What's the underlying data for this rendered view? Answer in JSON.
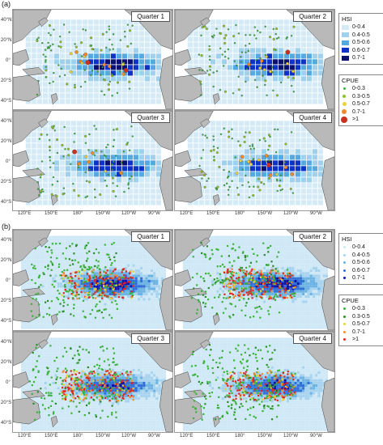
{
  "panels": [
    {
      "letter": "(a)",
      "quarters": [
        "Quarter 1",
        "Quarter 2",
        "Quarter 3",
        "Quarter 4"
      ]
    },
    {
      "letter": "(b)",
      "quarters": [
        "Quarter 1",
        "Quarter 2",
        "Quarter 3",
        "Quarter 4"
      ]
    }
  ],
  "axes": {
    "lat_labels_top": [
      "40°N",
      "20°N",
      "0°",
      "20°S",
      "40°S"
    ],
    "lat_labels_bottom": [
      "40°N",
      "20°N",
      "0°",
      "20°S",
      "40°S"
    ],
    "lon_labels": [
      "120°E",
      "150°E",
      "180°",
      "150°W",
      "120°W",
      "90°W"
    ]
  },
  "legend_a": {
    "hsi_title": "HSI",
    "hsi_items": [
      {
        "label": "0-0.4",
        "color": "#d4ebf7"
      },
      {
        "label": "0.4-0.5",
        "color": "#9fd0ec"
      },
      {
        "label": "0.5-0.6",
        "color": "#55a9e0"
      },
      {
        "label": "0.6-0.7",
        "color": "#0c32c6"
      },
      {
        "label": "0.7-1",
        "color": "#0a1070"
      }
    ],
    "cpue_title": "CPUE",
    "cpue_items": [
      {
        "label": "0-0.3",
        "color": "#3bb33b",
        "size": 3
      },
      {
        "label": "0.3-0.5",
        "color": "#8fbf2b",
        "size": 4
      },
      {
        "label": "0.5-0.7",
        "color": "#e8d23a",
        "size": 5
      },
      {
        "label": "0.7-1",
        "color": "#f08a2a",
        "size": 6
      },
      {
        "label": ">1",
        "color": "#c8321e",
        "size": 8
      }
    ]
  },
  "legend_b": {
    "hsi_title": "HSI",
    "hsi_items": [
      {
        "label": "0-0.4",
        "color": "#cfe8f6"
      },
      {
        "label": "0.4-0.5",
        "color": "#a7d3ef"
      },
      {
        "label": "0.5-0.6",
        "color": "#6bb3e4"
      },
      {
        "label": "0.6-0.7",
        "color": "#2f6fd8"
      },
      {
        "label": "0.7-1",
        "color": "#0a14a8"
      }
    ],
    "cpue_title": "CPUE",
    "cpue_items": [
      {
        "label": "0-0.3",
        "color": "#3bb33b",
        "size": 3
      },
      {
        "label": "0.3-0.5",
        "color": "#2a8a2a",
        "size": 3
      },
      {
        "label": "0.5-0.7",
        "color": "#e8d23a",
        "size": 3
      },
      {
        "label": "0.7-1",
        "color": "#f08a2a",
        "size": 3
      },
      {
        "label": ">1",
        "color": "#e0261e",
        "size": 3
      }
    ]
  }
}
